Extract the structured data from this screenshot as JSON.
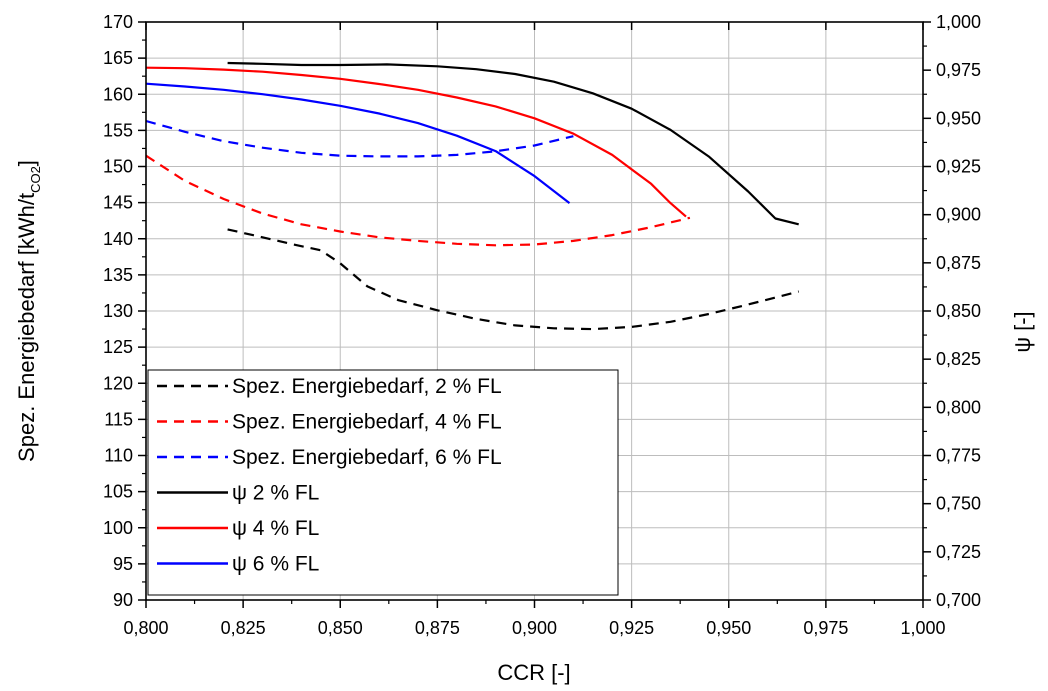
{
  "chart_data": {
    "type": "line",
    "xlabel": "CCR [-]",
    "ylabel": "Spez. Energiebedarf [kWh/t",
    "ylabel_sub": "CO2",
    "ylabel_tail": "]",
    "y2label": "ψ [-]",
    "xlim": [
      0.8,
      1.0
    ],
    "ylim": [
      90,
      170
    ],
    "y2lim": [
      0.7,
      1.0
    ],
    "x_ticks": [
      0.8,
      0.825,
      0.85,
      0.875,
      0.9,
      0.925,
      0.95,
      0.975,
      1.0
    ],
    "x_tick_labels": [
      "0,800",
      "0,825",
      "0,850",
      "0,875",
      "0,900",
      "0,925",
      "0,950",
      "0,975",
      "1,000"
    ],
    "y_ticks": [
      90,
      95,
      100,
      105,
      110,
      115,
      120,
      125,
      130,
      135,
      140,
      145,
      150,
      155,
      160,
      165,
      170
    ],
    "y_tick_labels": [
      "90",
      "95",
      "100",
      "105",
      "110",
      "115",
      "120",
      "125",
      "130",
      "135",
      "140",
      "145",
      "150",
      "155",
      "160",
      "165",
      "170"
    ],
    "y2_ticks": [
      0.7,
      0.725,
      0.75,
      0.775,
      0.8,
      0.825,
      0.85,
      0.875,
      0.9,
      0.925,
      0.95,
      0.975,
      1.0
    ],
    "y2_tick_labels": [
      "0,700",
      "0,725",
      "0,750",
      "0,775",
      "0,800",
      "0,825",
      "0,850",
      "0,875",
      "0,900",
      "0,925",
      "0,950",
      "0,975",
      "1,000"
    ],
    "grid": true,
    "legend_position": "bottom-left",
    "series": [
      {
        "name": "Spez. Energiebedarf, 2 % FL",
        "axis": "left",
        "color": "#000000",
        "dash": true,
        "x": [
          0.821,
          0.83,
          0.838,
          0.845,
          0.85,
          0.857,
          0.865,
          0.875,
          0.885,
          0.895,
          0.905,
          0.915,
          0.925,
          0.935,
          0.945,
          0.955,
          0.968
        ],
        "y": [
          141.3,
          140.2,
          139.2,
          138.4,
          136.6,
          133.4,
          131.5,
          130.1,
          128.9,
          128.0,
          127.6,
          127.5,
          127.8,
          128.5,
          129.6,
          130.9,
          132.7
        ]
      },
      {
        "name": "Spez. Energiebedarf, 4 % FL",
        "axis": "left",
        "color": "#ff0000",
        "dash": true,
        "x": [
          0.8,
          0.81,
          0.82,
          0.83,
          0.84,
          0.85,
          0.86,
          0.87,
          0.88,
          0.89,
          0.9,
          0.91,
          0.92,
          0.93,
          0.94
        ],
        "y": [
          151.5,
          148.0,
          145.5,
          143.5,
          142.0,
          141.0,
          140.2,
          139.7,
          139.3,
          139.1,
          139.2,
          139.7,
          140.5,
          141.6,
          142.9
        ]
      },
      {
        "name": "Spez. Energiebedarf, 6 % FL",
        "axis": "left",
        "color": "#0000ff",
        "dash": true,
        "x": [
          0.8,
          0.81,
          0.82,
          0.83,
          0.84,
          0.85,
          0.86,
          0.87,
          0.88,
          0.89,
          0.9,
          0.91
        ],
        "y": [
          156.3,
          154.8,
          153.5,
          152.6,
          151.9,
          151.5,
          151.4,
          151.4,
          151.6,
          152.1,
          152.9,
          154.2
        ]
      },
      {
        "name": "ψ 2 % FL",
        "axis": "right",
        "color": "#000000",
        "dash": false,
        "x": [
          0.821,
          0.83,
          0.84,
          0.85,
          0.862,
          0.875,
          0.885,
          0.895,
          0.905,
          0.915,
          0.925,
          0.935,
          0.945,
          0.955,
          0.962,
          0.968
        ],
        "y": [
          0.9787,
          0.9783,
          0.9777,
          0.9777,
          0.978,
          0.977,
          0.9755,
          0.973,
          0.969,
          0.963,
          0.955,
          0.944,
          0.93,
          0.912,
          0.898,
          0.895
        ]
      },
      {
        "name": "ψ 4 % FL",
        "axis": "right",
        "color": "#ff0000",
        "dash": false,
        "x": [
          0.8,
          0.81,
          0.82,
          0.83,
          0.84,
          0.85,
          0.86,
          0.87,
          0.88,
          0.89,
          0.9,
          0.91,
          0.92,
          0.93,
          0.935,
          0.939
        ],
        "y": [
          0.9763,
          0.976,
          0.9753,
          0.9742,
          0.9725,
          0.9705,
          0.9678,
          0.9648,
          0.9608,
          0.9562,
          0.95,
          0.942,
          0.931,
          0.916,
          0.906,
          0.899
        ]
      },
      {
        "name": "ψ 6 % FL",
        "axis": "right",
        "color": "#0000ff",
        "dash": false,
        "x": [
          0.8,
          0.81,
          0.82,
          0.83,
          0.84,
          0.85,
          0.86,
          0.87,
          0.88,
          0.89,
          0.9,
          0.909
        ],
        "y": [
          0.968,
          0.9665,
          0.9648,
          0.9625,
          0.9598,
          0.9565,
          0.9525,
          0.9475,
          0.941,
          0.933,
          0.92,
          0.906
        ]
      }
    ]
  }
}
